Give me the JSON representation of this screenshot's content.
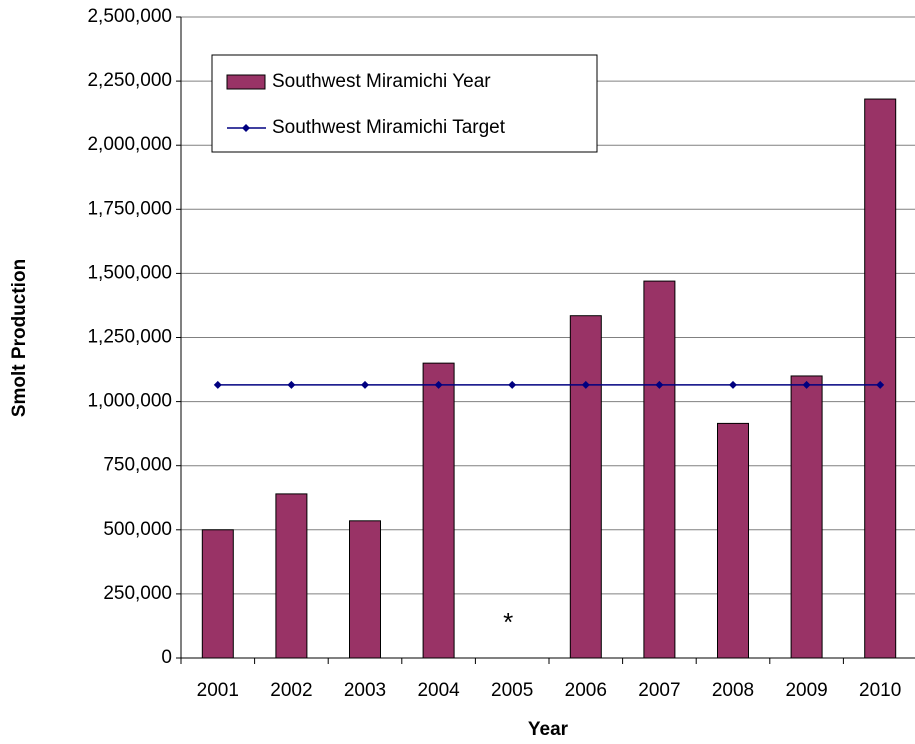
{
  "chart_data": {
    "type": "bar",
    "x_label": "Year",
    "y_label": "Smolt Production",
    "categories": [
      "2001",
      "2002",
      "2003",
      "2004",
      "2005",
      "2006",
      "2007",
      "2008",
      "2009",
      "2010"
    ],
    "series": [
      {
        "name": "Southwest Miramichi Year",
        "type": "bar",
        "color": "#993366",
        "values": [
          500000,
          640000,
          535000,
          1150000,
          null,
          1335000,
          1470000,
          915000,
          1100000,
          2180000
        ]
      },
      {
        "name": "Southwest Miramichi Target",
        "type": "line",
        "color": "#000080",
        "values": [
          1065000,
          1065000,
          1065000,
          1065000,
          1065000,
          1065000,
          1065000,
          1065000,
          1065000,
          1065000
        ]
      }
    ],
    "annotations": [
      {
        "text": "*",
        "category": "2005"
      }
    ],
    "ylim": [
      0,
      2500000
    ],
    "yticks": [
      0,
      {
        "value": 250000,
        "label": "250,000"
      },
      {
        "value": 500000,
        "label": "500,000"
      },
      {
        "value": 750000,
        "label": "750,000"
      },
      {
        "value": 1000000,
        "label": "1,000,000"
      },
      {
        "value": 1250000,
        "label": "1,250,000"
      },
      {
        "value": 1500000,
        "label": "1,500,000"
      },
      {
        "value": 1750000,
        "label": "1,750,000"
      },
      {
        "value": 2000000,
        "label": "2,000,000"
      },
      {
        "value": 2250000,
        "label": "2,250,000"
      },
      {
        "value": 2500000,
        "label": "2,500,000"
      }
    ],
    "grid": true,
    "legend": "top-left"
  }
}
